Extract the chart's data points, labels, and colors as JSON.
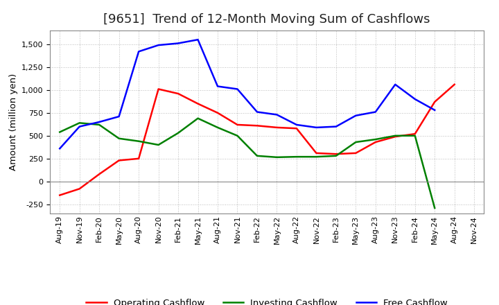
{
  "title": "[9651]  Trend of 12-Month Moving Sum of Cashflows",
  "ylabel": "Amount (million yen)",
  "x_labels": [
    "Aug-19",
    "Nov-19",
    "Feb-20",
    "May-20",
    "Aug-20",
    "Nov-20",
    "Feb-21",
    "May-21",
    "Aug-21",
    "Nov-21",
    "Feb-22",
    "May-22",
    "Aug-22",
    "Nov-22",
    "Feb-23",
    "May-23",
    "Aug-23",
    "Nov-23",
    "Feb-24",
    "May-24",
    "Aug-24",
    "Nov-24"
  ],
  "operating_cashflow": [
    -150,
    -80,
    80,
    230,
    250,
    1010,
    960,
    850,
    750,
    620,
    610,
    590,
    580,
    310,
    300,
    310,
    430,
    490,
    520,
    870,
    1060,
    null
  ],
  "investing_cashflow": [
    540,
    640,
    620,
    470,
    440,
    400,
    530,
    690,
    590,
    500,
    280,
    265,
    270,
    270,
    280,
    430,
    460,
    500,
    500,
    -290,
    null,
    null
  ],
  "free_cashflow": [
    360,
    600,
    650,
    710,
    1420,
    1490,
    1510,
    1550,
    1040,
    1010,
    760,
    730,
    620,
    590,
    600,
    720,
    760,
    1060,
    900,
    780,
    null,
    null
  ],
  "ylim": [
    -350,
    1650
  ],
  "yticks": [
    -250,
    0,
    250,
    500,
    750,
    1000,
    1250,
    1500
  ],
  "operating_color": "#ff0000",
  "investing_color": "#008000",
  "free_color": "#0000ff",
  "background_color": "#ffffff",
  "grid_color": "#bbbbbb",
  "line_width": 1.8,
  "title_fontsize": 13,
  "legend_fontsize": 9.5,
  "tick_fontsize": 8
}
